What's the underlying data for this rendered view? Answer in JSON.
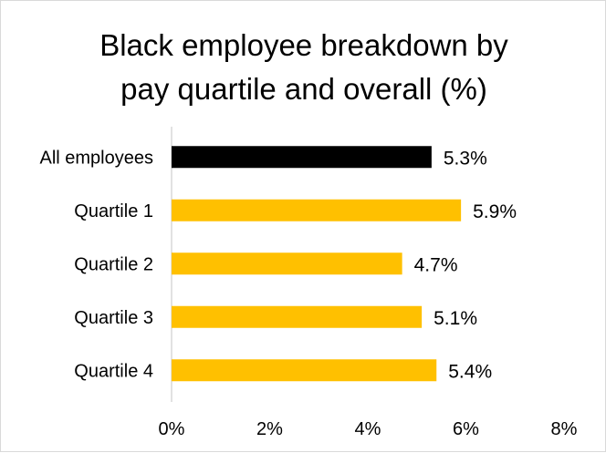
{
  "chart_data": {
    "type": "bar",
    "orientation": "horizontal",
    "title": "Black employee breakdown by pay quartile and overall (%)",
    "title_lines": [
      "Black employee breakdown by",
      "pay quartile and overall (%)"
    ],
    "categories": [
      "All employees",
      "Quartile 1",
      "Quartile 2",
      "Quartile 3",
      "Quartile 4"
    ],
    "values": [
      5.3,
      5.9,
      4.7,
      5.1,
      5.4
    ],
    "data_labels": [
      "5.3%",
      "5.9%",
      "4.7%",
      "5.1%",
      "5.4%"
    ],
    "bar_colors": [
      "#000000",
      "#ffc000",
      "#ffc000",
      "#ffc000",
      "#ffc000"
    ],
    "xlim": [
      0,
      8
    ],
    "x_ticks": [
      0,
      2,
      4,
      6,
      8
    ],
    "x_tick_labels": [
      "0%",
      "2%",
      "4%",
      "6%",
      "8%"
    ],
    "xlabel": "",
    "ylabel": "",
    "grid": false,
    "legend": "none"
  }
}
